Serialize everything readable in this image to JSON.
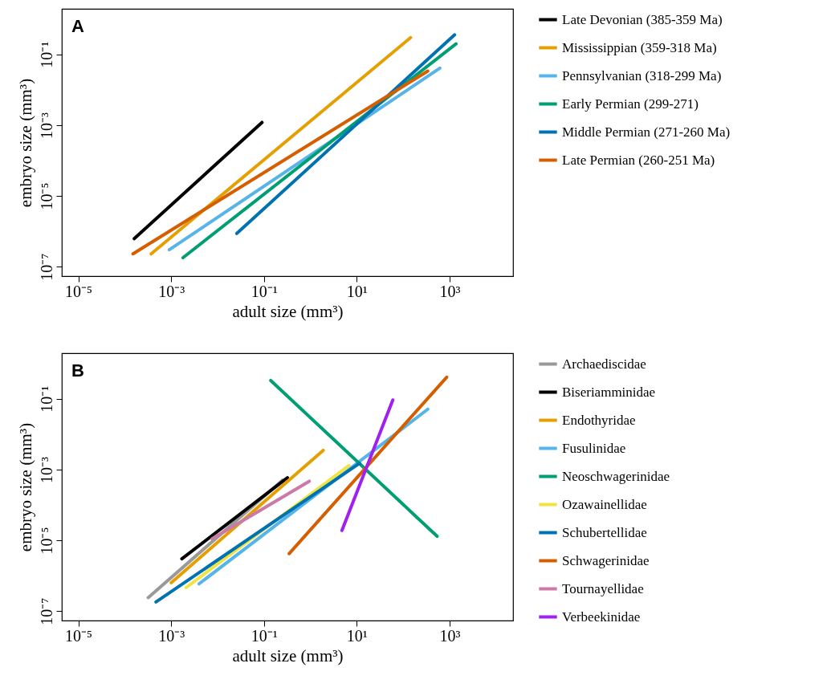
{
  "chart_data": [
    {
      "type": "line",
      "xlabel": "adult size (mm³)",
      "ylabel": "embryo size (mm³)",
      "log": "xy",
      "legend": "right",
      "annotations": [
        "A"
      ],
      "xlim": [
        4.4e-06,
        23400
      ],
      "ylim": [
        5.4e-08,
        1.95
      ],
      "xticks": [
        {
          "value": 1e-05,
          "label": "10⁻⁵"
        },
        {
          "value": 0.001,
          "label": "10⁻³"
        },
        {
          "value": 0.1,
          "label": "10⁻¹"
        },
        {
          "value": 10,
          "label": "10¹"
        },
        {
          "value": 1000,
          "label": "10³"
        }
      ],
      "yticks": [
        {
          "value": 1e-07,
          "label": "10⁻⁷"
        },
        {
          "value": 1e-05,
          "label": "10⁻⁵"
        },
        {
          "value": 0.001,
          "label": "10⁻³"
        },
        {
          "value": 0.1,
          "label": "10⁻¹"
        }
      ],
      "series": [
        {
          "name": "Late Devonian (385-359 Ma)",
          "color": "#000000",
          "x": [
            0.00016,
            0.091
          ],
          "values": [
            6.2e-07,
            0.0012
          ]
        },
        {
          "name": "Mississippian (359-318 Ma)",
          "color": "#e69f00",
          "x": [
            0.00037,
            145
          ],
          "values": [
            2.3e-07,
            0.3
          ]
        },
        {
          "name": "Pennsylvanian (318-299 Ma)",
          "color": "#56b4e9",
          "x": [
            0.00091,
            620
          ],
          "values": [
            3e-07,
            0.041
          ]
        },
        {
          "name": "Early Permian (299-271)",
          "color": "#009e73",
          "x": [
            0.0018,
            1380
          ],
          "values": [
            1.8e-07,
            0.2
          ]
        },
        {
          "name": "Middle Permian (271-260 Ma)",
          "color": "#0072b2",
          "x": [
            0.026,
            1290
          ],
          "values": [
            8.7e-07,
            0.36
          ]
        },
        {
          "name": "Late Permian (260-251 Ma)",
          "color": "#d55e00",
          "x": [
            0.00015,
            340
          ],
          "values": [
            2.3e-07,
            0.034
          ]
        }
      ]
    },
    {
      "type": "line",
      "xlabel": "adult size (mm³)",
      "ylabel": "embryo size (mm³)",
      "log": "xy",
      "legend": "right",
      "annotations": [
        "B"
      ],
      "xlim": [
        4.4e-06,
        23400
      ],
      "ylim": [
        5.4e-08,
        1.95
      ],
      "xticks": [
        {
          "value": 1e-05,
          "label": "10⁻⁵"
        },
        {
          "value": 0.001,
          "label": "10⁻³"
        },
        {
          "value": 0.1,
          "label": "10⁻¹"
        },
        {
          "value": 10,
          "label": "10¹"
        },
        {
          "value": 1000,
          "label": "10³"
        }
      ],
      "yticks": [
        {
          "value": 1e-07,
          "label": "10⁻⁷"
        },
        {
          "value": 1e-05,
          "label": "10⁻⁵"
        },
        {
          "value": 0.001,
          "label": "10⁻³"
        },
        {
          "value": 0.1,
          "label": "10⁻¹"
        }
      ],
      "series": [
        {
          "name": "Archaediscidae",
          "color": "#999999",
          "x": [
            0.00032,
            0.25
          ],
          "values": [
            2.4e-07,
            0.0005
          ]
        },
        {
          "name": "Biseriamminidae",
          "color": "#000000",
          "x": [
            0.0017,
            0.32
          ],
          "values": [
            3e-06,
            0.00059
          ]
        },
        {
          "name": "Endothyridae",
          "color": "#e69f00",
          "x": [
            0.001,
            1.9
          ],
          "values": [
            6.3e-07,
            0.0035
          ]
        },
        {
          "name": "Fusulinidae",
          "color": "#56b4e9",
          "x": [
            0.004,
            340
          ],
          "values": [
            5.9e-07,
            0.051
          ]
        },
        {
          "name": "Neoschwagerinidae",
          "color": "#009e73",
          "x": [
            0.14,
            540
          ],
          "values": [
            0.33,
            1.3e-05
          ]
        },
        {
          "name": "Ozawainellidae",
          "color": "#f0e442",
          "x": [
            0.0021,
            6.8
          ],
          "values": [
            4.6e-07,
            0.0013
          ]
        },
        {
          "name": "Schubertellidae",
          "color": "#0072b2",
          "x": [
            0.00047,
            11.5
          ],
          "values": [
            1.8e-07,
            0.0015
          ]
        },
        {
          "name": "Schwagerinidae",
          "color": "#d55e00",
          "x": [
            0.35,
            870
          ],
          "values": [
            4.2e-06,
            0.41
          ]
        },
        {
          "name": "Tournayellidae",
          "color": "#cc79a7",
          "x": [
            0.0076,
            0.95
          ],
          "values": [
            1.1e-05,
            0.00047
          ]
        },
        {
          "name": "Verbeekinidae",
          "color": "#a020f0",
          "x": [
            4.8,
            60
          ],
          "values": [
            1.9e-05,
            0.093
          ]
        }
      ]
    }
  ]
}
